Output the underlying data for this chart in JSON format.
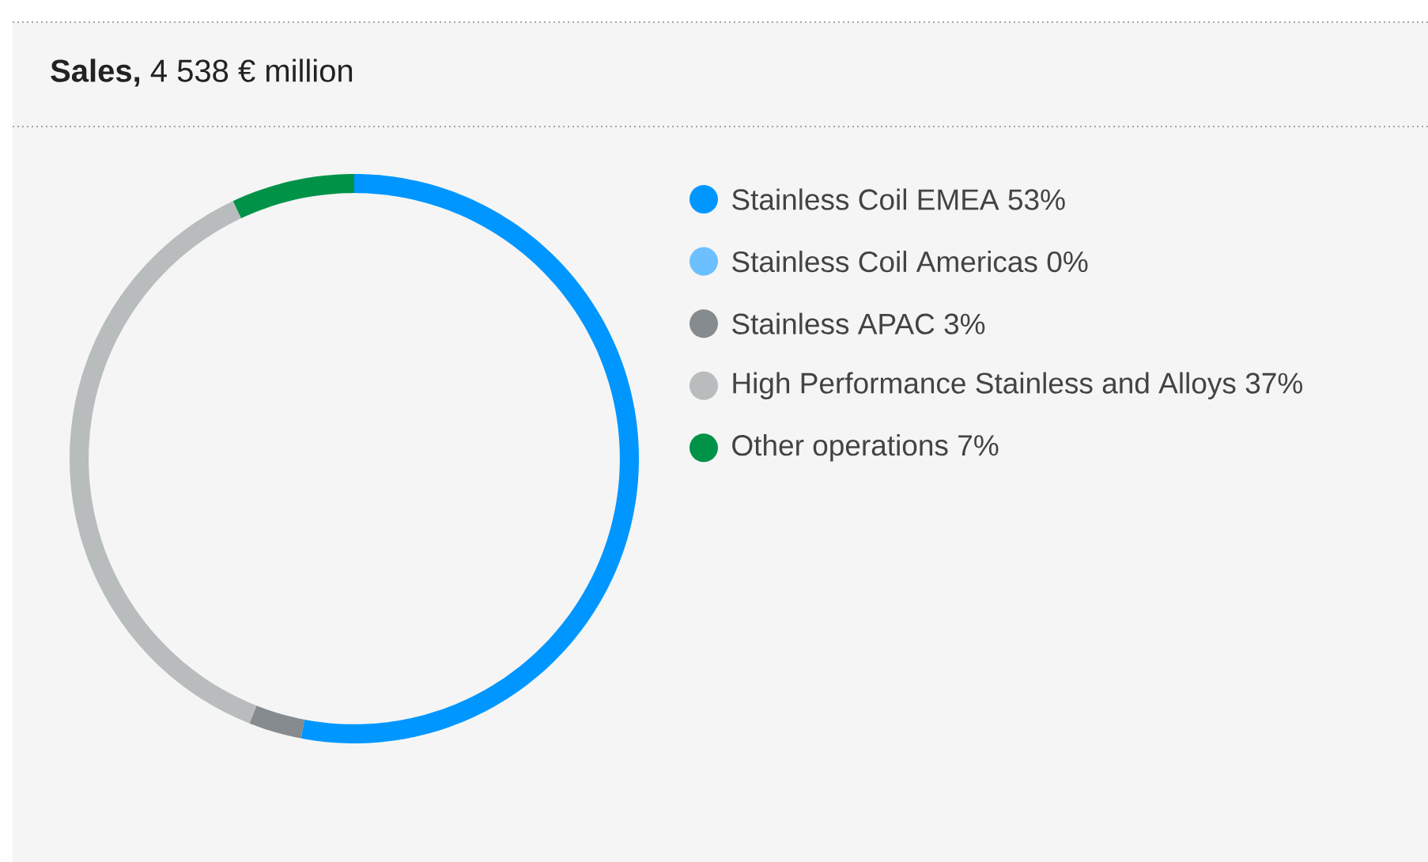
{
  "chart_data": {
    "type": "donut",
    "title": "**Sales,** 4 538 € million",
    "categories": [
      "Stainless Coil EMEA",
      "Stainless Coil Americas",
      "Stainless APAC",
      "High Performance Stainless and Alloys",
      "Other operations"
    ],
    "values": [
      53,
      0,
      3,
      37,
      7
    ],
    "value_labels": [
      "53%",
      "0%",
      "3%",
      "37%",
      "7%"
    ],
    "colors": [
      "#0096ff",
      "#6cc0ff",
      "#858b8e",
      "#b8bcbc",
      "#009348"
    ],
    "legend": "right"
  }
}
